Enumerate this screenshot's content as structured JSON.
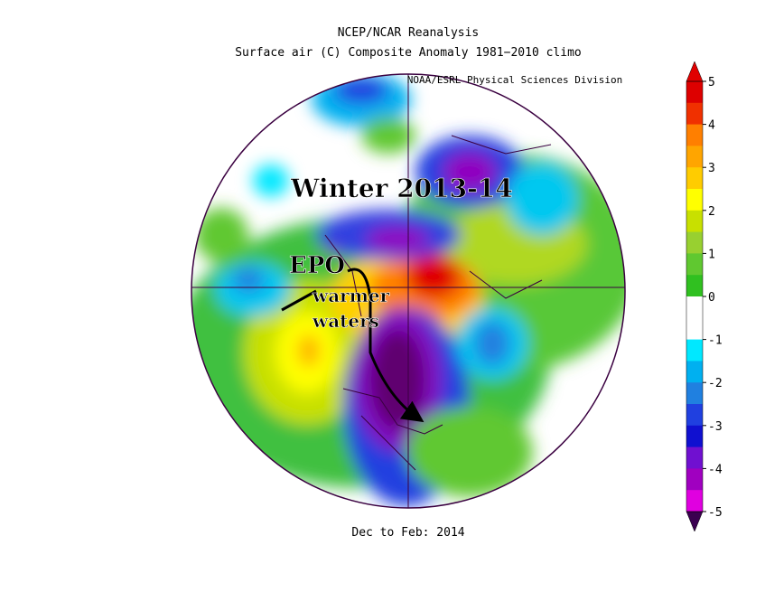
{
  "header": {
    "title": "NCEP/NCAR Reanalysis",
    "subtitle": "Surface air (C) Composite Anomaly 1981−2010 climo",
    "credit": "NOAA/ESRL Physical Sciences Division"
  },
  "annotations": {
    "season": "Winter 2013-14",
    "index": "EPO",
    "note_1": "warmer",
    "note_2": "waters"
  },
  "colorbar": {
    "ticks": [
      5,
      4,
      3,
      2,
      1,
      0,
      -1,
      -2,
      -3,
      -4,
      -5
    ],
    "colors": [
      "#dd0000",
      "#f03000",
      "#ff7f00",
      "#ffa500",
      "#ffcc00",
      "#ffff00",
      "#c8e000",
      "#98d030",
      "#60c830",
      "#30c020",
      "#ffffff",
      "#ffffff",
      "#00e8ff",
      "#00b0f0",
      "#2080e0",
      "#2040e0",
      "#1010d0",
      "#7010d0",
      "#a000c0",
      "#e000e0"
    ],
    "over_color": "#e00000",
    "under_color": "#3a0050"
  },
  "footer": "Dec to Feb: 2014"
}
